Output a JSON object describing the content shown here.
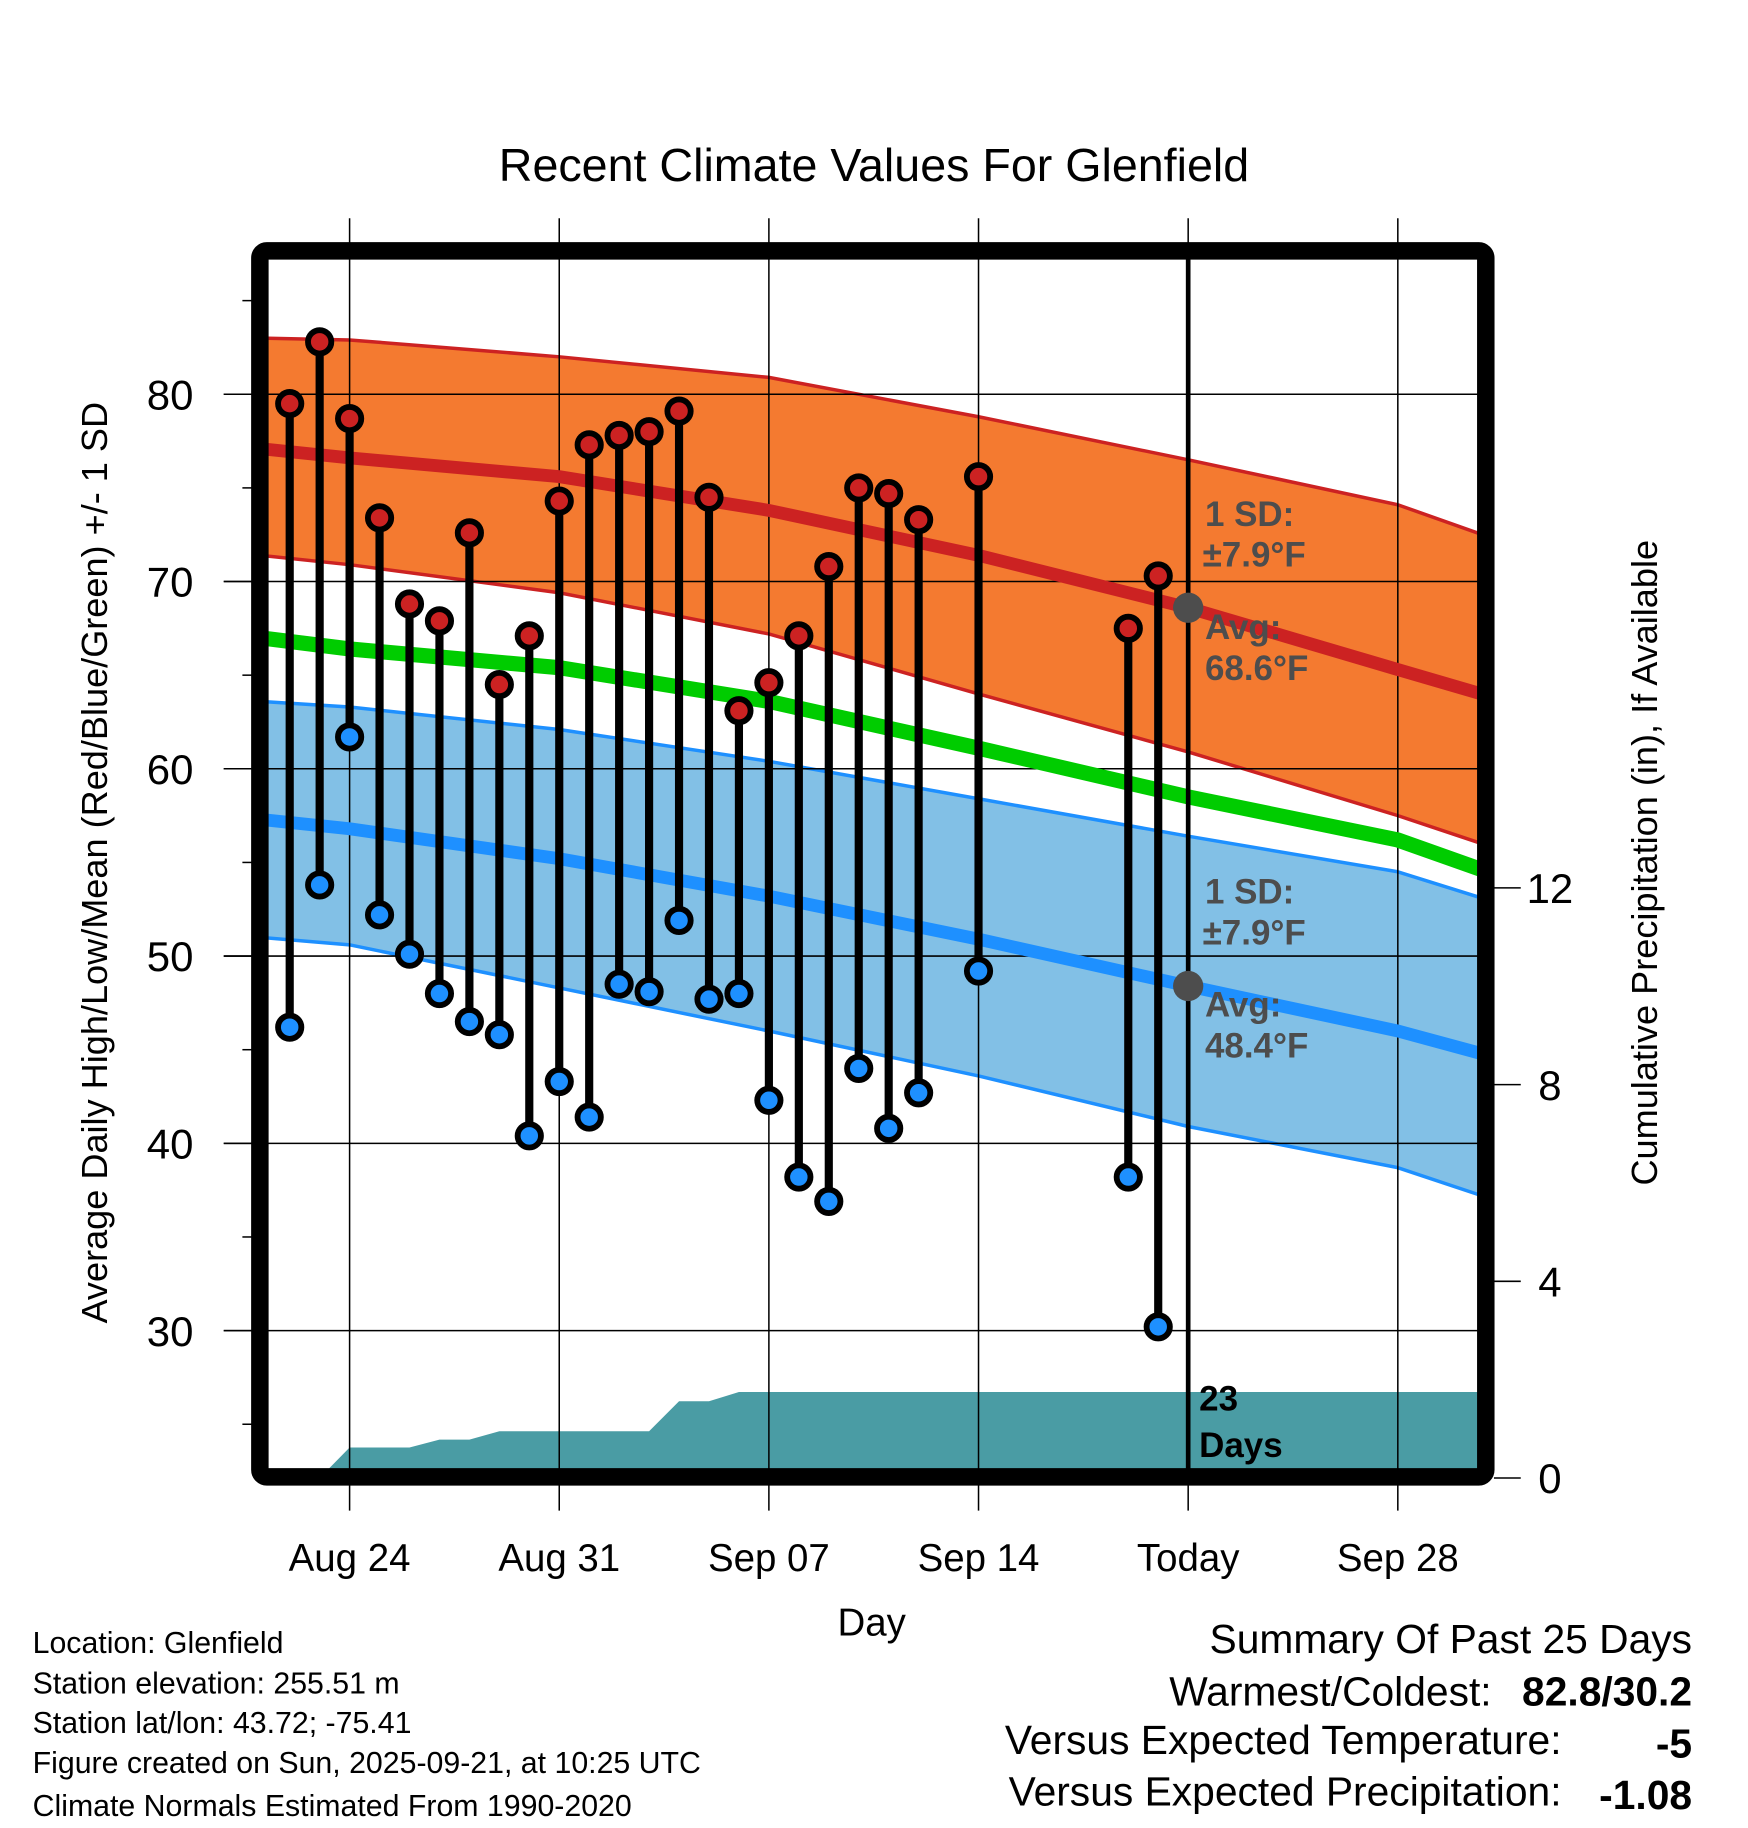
{
  "chart_data": {
    "type": "line",
    "title": "Recent Climate Values For Glenfield",
    "xlabel": "Day",
    "ylabel": "Average Daily High/Low/Mean (Red/Blue/Green) +/- 1 SD",
    "y2label": "Cumulative Precipitation (in), If Available",
    "ylim": [
      22.6,
      87.3
    ],
    "y2lim": [
      0,
      24.8
    ],
    "grid": true,
    "yticks": [
      30,
      40,
      50,
      60,
      70,
      80
    ],
    "y2ticks": [
      0,
      4,
      8,
      12
    ],
    "xticks": [
      {
        "date": "Aug 24",
        "label": "Aug 24"
      },
      {
        "date": "Aug 31",
        "label": "Aug 31"
      },
      {
        "date": "Sep 07",
        "label": "Sep 07"
      },
      {
        "date": "Sep 14",
        "label": "Sep 14"
      },
      {
        "date": "Sep 21",
        "label": "Today"
      },
      {
        "date": "Sep 28",
        "label": "Sep 28"
      }
    ],
    "today": "Sep 21",
    "observed": [
      {
        "date": "Aug 22",
        "high": 79.5,
        "low": 46.2
      },
      {
        "date": "Aug 23",
        "high": 82.8,
        "low": 53.8
      },
      {
        "date": "Aug 24",
        "high": 78.7,
        "low": 61.7
      },
      {
        "date": "Aug 25",
        "high": 73.4,
        "low": 52.2
      },
      {
        "date": "Aug 26",
        "high": 68.8,
        "low": 50.1
      },
      {
        "date": "Aug 27",
        "high": 67.9,
        "low": 48.0
      },
      {
        "date": "Aug 28",
        "high": 72.6,
        "low": 46.5
      },
      {
        "date": "Aug 29",
        "high": 64.5,
        "low": 45.8
      },
      {
        "date": "Aug 30",
        "high": 67.1,
        "low": 40.4
      },
      {
        "date": "Aug 31",
        "high": 74.3,
        "low": 43.3
      },
      {
        "date": "Sep 01",
        "high": 77.3,
        "low": 41.4
      },
      {
        "date": "Sep 02",
        "high": 77.8,
        "low": 48.5
      },
      {
        "date": "Sep 03",
        "high": 78.0,
        "low": 48.1
      },
      {
        "date": "Sep 04",
        "high": 79.1,
        "low": 51.9
      },
      {
        "date": "Sep 05",
        "high": 74.5,
        "low": 47.7
      },
      {
        "date": "Sep 06",
        "high": 63.1,
        "low": 48.0
      },
      {
        "date": "Sep 07",
        "high": 64.6,
        "low": 42.3
      },
      {
        "date": "Sep 08",
        "high": 67.1,
        "low": 38.2
      },
      {
        "date": "Sep 09",
        "high": 70.8,
        "low": 36.9
      },
      {
        "date": "Sep 10",
        "high": 75.0,
        "low": 44.0
      },
      {
        "date": "Sep 11",
        "high": 74.7,
        "low": 40.8
      },
      {
        "date": "Sep 12",
        "high": 73.3,
        "low": 42.7
      },
      {
        "date": "Sep 14",
        "high": 75.6,
        "low": 49.2
      },
      {
        "date": "Sep 19",
        "high": 67.5,
        "low": 38.2
      },
      {
        "date": "Sep 20",
        "high": 70.3,
        "low": 30.2
      }
    ],
    "normals": {
      "dates": [
        "Aug 21",
        "Aug 24",
        "Aug 31",
        "Sep 07",
        "Sep 14",
        "Sep 21",
        "Sep 28",
        "Oct 01"
      ],
      "high_upper": [
        83.0,
        82.9,
        82.0,
        80.9,
        78.8,
        76.5,
        74.1,
        72.4
      ],
      "high_mean": [
        77.1,
        76.6,
        75.6,
        73.8,
        71.4,
        68.6,
        65.3,
        63.9
      ],
      "high_lower": [
        71.4,
        70.9,
        69.4,
        67.2,
        64.0,
        60.9,
        57.5,
        55.9
      ],
      "mean": [
        67.0,
        66.4,
        65.4,
        63.6,
        61.1,
        58.5,
        56.2,
        54.5
      ],
      "low_upper": [
        63.6,
        63.3,
        62.1,
        60.4,
        58.4,
        56.4,
        54.5,
        53.0
      ],
      "low_mean": [
        57.3,
        56.8,
        55.2,
        53.2,
        50.9,
        48.4,
        46.0,
        44.7
      ],
      "low_lower": [
        51.0,
        50.6,
        48.3,
        46.0,
        43.6,
        40.9,
        38.7,
        37.1
      ]
    },
    "precip_cumulative": [
      {
        "date": "Aug 21",
        "value": 0
      },
      {
        "date": "Aug 23",
        "value": 0
      },
      {
        "date": "Aug 24",
        "value": 0.62
      },
      {
        "date": "Aug 26",
        "value": 0.62
      },
      {
        "date": "Aug 27",
        "value": 0.78
      },
      {
        "date": "Aug 28",
        "value": 0.78
      },
      {
        "date": "Aug 29",
        "value": 0.95
      },
      {
        "date": "Sep 03",
        "value": 0.95
      },
      {
        "date": "Sep 04",
        "value": 1.56
      },
      {
        "date": "Sep 05",
        "value": 1.56
      },
      {
        "date": "Sep 06",
        "value": 1.75
      },
      {
        "date": "Oct 01",
        "value": 1.75
      }
    ],
    "annotations": {
      "high_sd": "1 SD:",
      "high_sd_val": "±7.9°F",
      "high_avg": "Avg:",
      "high_avg_val": "68.6°F",
      "high_avg_num": 68.6,
      "low_sd": "1 SD:",
      "low_sd_val": "±7.9°F",
      "low_avg": "Avg:",
      "low_avg_val": "48.4°F",
      "low_avg_num": 48.4,
      "days_num": "23",
      "days_word": "Days"
    },
    "colors": {
      "high_band": "#f47a30",
      "high_line": "#cc2222",
      "mean_line": "#00cc00",
      "low_band": "#82c0e6",
      "low_line": "#1e90ff",
      "precip": "#4a9ca4",
      "high_point": "#cc2222",
      "low_point": "#1e90ff",
      "annotation": "#4d4d4d"
    }
  },
  "footer": {
    "location": "Location: Glenfield",
    "elevation": "Station elevation: 255.51 m",
    "latlon": "Station lat/lon: 43.72; -75.41",
    "created": "Figure created on Sun, 2025-09-21, at 10:25 UTC",
    "normals": "Climate Normals Estimated From 1990-2020"
  },
  "summary": {
    "title": "Summary Of Past 25 Days",
    "warmest_label": "Warmest/Coldest:",
    "warmest_value": "82.8/30.2",
    "temp_label": "Versus Expected Temperature:",
    "temp_value": "-5",
    "temp_color": "#1e90ff",
    "precip_label": "Versus Expected Precipitation:",
    "precip_value": "-1.08",
    "precip_color": "#a0522d"
  }
}
